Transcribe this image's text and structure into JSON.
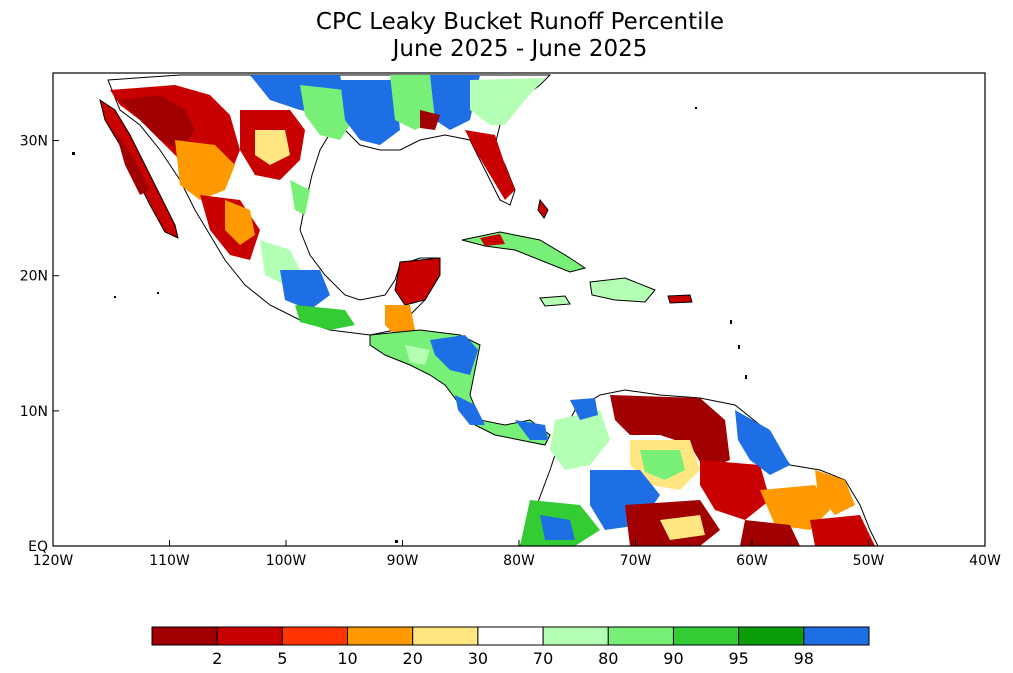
{
  "title": {
    "line1": "CPC Leaky Bucket Runoff Percentile",
    "line2": "June 2025 - June 2025"
  },
  "axes": {
    "lon_range": [
      -120,
      -40
    ],
    "lat_range": [
      0,
      35
    ],
    "x_ticks": [
      {
        "value": -120,
        "label": "120W"
      },
      {
        "value": -110,
        "label": "110W"
      },
      {
        "value": -100,
        "label": "100W"
      },
      {
        "value": -90,
        "label": "90W"
      },
      {
        "value": -80,
        "label": "80W"
      },
      {
        "value": -70,
        "label": "70W"
      },
      {
        "value": -60,
        "label": "60W"
      },
      {
        "value": -50,
        "label": "50W"
      },
      {
        "value": -40,
        "label": "40W"
      }
    ],
    "y_ticks": [
      {
        "value": 0,
        "label": "EQ"
      },
      {
        "value": 10,
        "label": "10N"
      },
      {
        "value": 20,
        "label": "20N"
      },
      {
        "value": 30,
        "label": "30N"
      }
    ]
  },
  "colorbar": {
    "colors": [
      "#a00000",
      "#c80000",
      "#ff3300",
      "#ff9900",
      "#ffe680",
      "#ffffff",
      "#b3ffb3",
      "#78f078",
      "#33cc33",
      "#0a9e0a",
      "#1e6ee6"
    ],
    "labels": [
      "2",
      "5",
      "10",
      "20",
      "30",
      "70",
      "80",
      "90",
      "95",
      "98"
    ]
  },
  "colors": {
    "land_outline": "#000000",
    "ocean": "#ffffff",
    "frame": "#000000"
  }
}
